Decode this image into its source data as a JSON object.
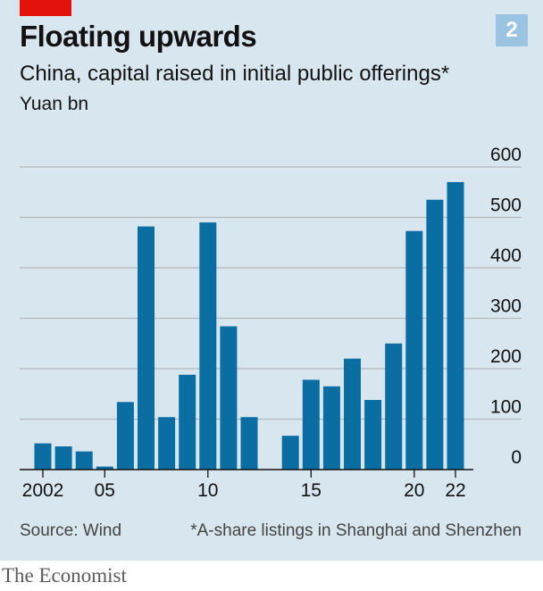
{
  "header": {
    "chart_number": "2",
    "title": "Floating upwards",
    "subtitle": "China, capital raised in initial public offerings*",
    "unit": "Yuan bn"
  },
  "footer": {
    "source": "Source: Wind",
    "footnote": "*A-share listings in Shanghai and Shenzhen",
    "brand": "The Economist"
  },
  "colors": {
    "bar": "#0b6ea3",
    "background": "#d8e6ef",
    "gridline": "#b3b8bc",
    "baseline": "#121212",
    "accent": "#e3120b"
  },
  "chart_data": {
    "type": "bar",
    "title": "Floating upwards",
    "subtitle": "China, capital raised in initial public offerings*",
    "ylabel": "Yuan bn",
    "xlabel": "",
    "categories": [
      2002,
      2003,
      2004,
      2005,
      2006,
      2007,
      2008,
      2009,
      2010,
      2011,
      2012,
      2013,
      2014,
      2015,
      2016,
      2017,
      2018,
      2019,
      2020,
      2021,
      2022
    ],
    "values": [
      52,
      46,
      36,
      6,
      134,
      482,
      104,
      188,
      490,
      284,
      104,
      0,
      67,
      178,
      165,
      220,
      138,
      250,
      473,
      535,
      570
    ],
    "ylim": [
      0,
      600
    ],
    "yticks": [
      0,
      100,
      200,
      300,
      400,
      500,
      600
    ],
    "xtick_values": [
      2002,
      2005,
      2010,
      2015,
      2020,
      2022
    ],
    "xtick_labels": [
      "2002",
      "05",
      "10",
      "15",
      "20",
      "22"
    ],
    "grid": true,
    "legend": "none"
  }
}
